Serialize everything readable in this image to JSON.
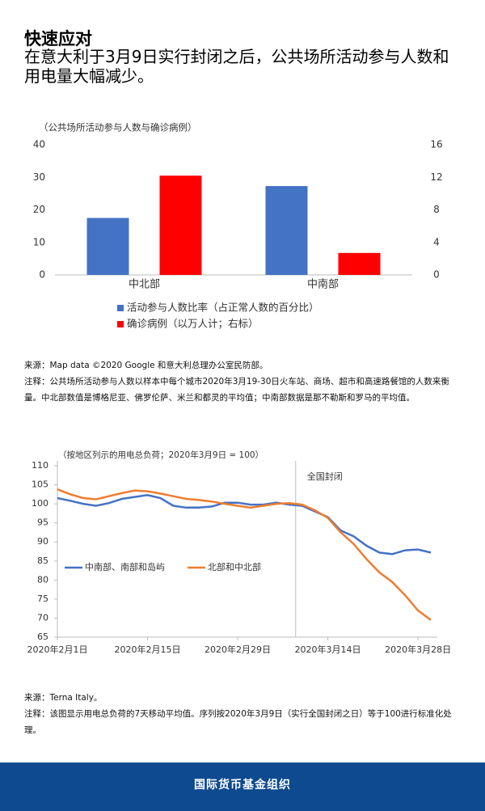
{
  "header": {
    "title": "快速应对",
    "subtitle": "在意大利于3月9日实行封闭之后，公共场所活动参与人数和用电量大幅减少。"
  },
  "chart_data": [
    {
      "type": "bar",
      "annotation": "（公共场所活动参与人数与确诊病例）",
      "categories": [
        "中北部",
        "中南部"
      ],
      "series": [
        {
          "name": "活动参与人数比率（占正常人数的百分比）",
          "color": "#4472c4",
          "values": [
            17.5,
            27.3
          ]
        },
        {
          "name": "确诊病例（以万人计；右标）",
          "color": "#ff0000",
          "axis": "y2",
          "values": [
            12.2,
            2.7
          ]
        }
      ],
      "ylim": [
        0,
        40
      ],
      "yticks": [
        0,
        10,
        20,
        30,
        40
      ],
      "y2lim": [
        0,
        16
      ],
      "y2ticks": [
        0,
        4,
        8,
        12,
        16
      ],
      "grid": false,
      "legend": "bottom"
    },
    {
      "type": "line",
      "annotation": {
        "text": "（按地区列示的用电总负荷；2020年3月9日 = 100）"
      },
      "event": {
        "text": "全国封闭",
        "x": "2020-03-09"
      },
      "x": [
        "2020-02-01",
        "2020-02-03",
        "2020-02-05",
        "2020-02-07",
        "2020-02-09",
        "2020-02-11",
        "2020-02-13",
        "2020-02-15",
        "2020-02-17",
        "2020-02-19",
        "2020-02-21",
        "2020-02-23",
        "2020-02-25",
        "2020-02-27",
        "2020-02-29",
        "2020-03-02",
        "2020-03-04",
        "2020-03-06",
        "2020-03-08",
        "2020-03-10",
        "2020-03-12",
        "2020-03-14",
        "2020-03-16",
        "2020-03-18",
        "2020-03-20",
        "2020-03-22",
        "2020-03-24",
        "2020-03-26",
        "2020-03-28",
        "2020-03-30"
      ],
      "series": [
        {
          "name": "中南部、南部和岛屿",
          "color": "#4472c4",
          "values": [
            101.5,
            100.8,
            100,
            99.5,
            100.2,
            101.3,
            101.8,
            102.3,
            101.5,
            99.5,
            99,
            99,
            99.3,
            100.3,
            100.3,
            99.8,
            99.8,
            100.3,
            99.8,
            99.5,
            98,
            96.5,
            93,
            91.5,
            89,
            87.2,
            86.8,
            87.8,
            88,
            87.2
          ]
        },
        {
          "name": "北部和中北部",
          "color": "#ed7d31",
          "values": [
            103.8,
            102.5,
            101.5,
            101.2,
            102,
            102.8,
            103.5,
            103.3,
            102.7,
            102,
            101.3,
            101,
            100.6,
            100,
            99.5,
            99,
            99.5,
            100,
            100.2,
            99.8,
            98.3,
            96.3,
            92.5,
            89.5,
            85.5,
            82,
            79.5,
            76,
            72,
            69.5
          ]
        }
      ],
      "xlim": [
        "2020-02-01",
        "2020-03-31"
      ],
      "xticks": [
        {
          "value": "2020-02-01",
          "label": "2020年2月1日"
        },
        {
          "value": "2020-02-15",
          "label": "2020年2月15日"
        },
        {
          "value": "2020-02-29",
          "label": "2020年2月29日"
        },
        {
          "value": "2020-03-14",
          "label": "2020年3月14日"
        },
        {
          "value": "2020-03-28",
          "label": "2020年3月28日"
        }
      ],
      "ylim": [
        65,
        110
      ],
      "yticks": [
        65,
        70,
        75,
        80,
        85,
        90,
        95,
        100,
        105,
        110
      ],
      "grid": false,
      "legend": "left"
    }
  ],
  "notes1": {
    "source": "来源：Map data ©2020 Google 和意大利总理办公室民防部。",
    "note": "注释：公共场所活动参与人数以样本中每个城市2020年3月19-30日火车站、商场、超市和高速路餐馆的人数来衡量。中北部数值是博格尼亚、佛罗伦萨、米兰和都灵的平均值；中南部数据是那不勒斯和罗马的平均值。"
  },
  "notes2": {
    "source": "来源：Terna Italy。",
    "note": "注释：该图显示用电总负荷的7天移动平均值。序列按2020年3月9日（实行全国封闭之日）等于100进行标准化处理。"
  },
  "footer": {
    "label": "国际货币基金组织"
  }
}
